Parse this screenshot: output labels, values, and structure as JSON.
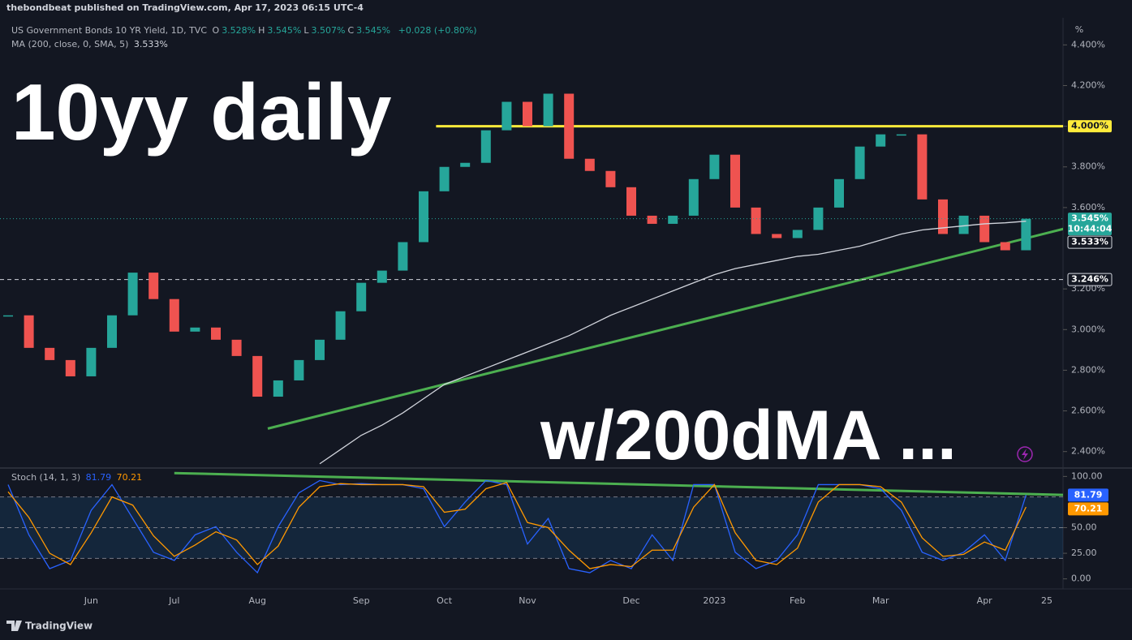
{
  "header": {
    "publisher": "thebondbeat published on TradingView.com, Apr 17, 2023 06:15 UTC-4",
    "footer": "TradingView"
  },
  "chart_data": [
    {
      "type": "candlestick",
      "axis_unit": "%",
      "ohlc": [
        {
          "key": "O",
          "value": "3.528%"
        },
        {
          "key": "H",
          "value": "3.545%"
        },
        {
          "key": "L",
          "value": "3.507%"
        },
        {
          "key": "C",
          "value": "3.545%"
        }
      ],
      "change": "+0.028 (+0.80%)",
      "annotations": [
        "10yy daily",
        "w/200dMA ..."
      ],
      "ylim": [
        2.323,
        4.533
      ],
      "yticks": [
        {
          "value": 2.4,
          "label": "2.400%"
        },
        {
          "value": 2.6,
          "label": "2.600%"
        },
        {
          "value": 2.8,
          "label": "2.800%"
        },
        {
          "value": 3.0,
          "label": "3.000%"
        },
        {
          "value": 3.2,
          "label": "3.200%"
        },
        {
          "value": 3.6,
          "label": "3.600%"
        },
        {
          "value": 3.8,
          "label": "3.800%"
        },
        {
          "value": 4.0,
          "label": "4.000%"
        },
        {
          "value": 4.2,
          "label": "4.200%"
        },
        {
          "value": 4.4,
          "label": "4.400%"
        }
      ],
      "series": [
        {
          "type": "candlestick",
          "name": "US Government Bonds 10 YR Yield, 1D, TVC",
          "up_color": "#26a69a",
          "down_color": "#ef5350",
          "values": [
            3.07,
            2.91,
            2.85,
            2.77,
            2.91,
            3.07,
            3.28,
            3.15,
            2.99,
            3.01,
            2.95,
            2.87,
            2.67,
            2.75,
            2.85,
            2.95,
            3.09,
            3.23,
            3.29,
            3.43,
            3.68,
            3.8,
            3.82,
            3.98,
            4.12,
            4.0,
            4.16,
            3.84,
            3.78,
            3.7,
            3.56,
            3.52,
            3.56,
            3.74,
            3.86,
            3.6,
            3.47,
            3.45,
            3.49,
            3.6,
            3.74,
            3.9,
            3.96,
            3.96,
            3.64,
            3.47,
            3.56,
            3.43,
            3.39,
            3.545,
            null
          ],
          "last_label": "3.545%",
          "countdown": "10:44:04"
        },
        {
          "type": "line",
          "name": "MA (200, close, 0, SMA, 5)",
          "color": "#d1d4dc",
          "values": [
            null,
            null,
            null,
            null,
            null,
            null,
            null,
            null,
            null,
            null,
            null,
            null,
            null,
            null,
            null,
            2.34,
            2.41,
            2.48,
            2.53,
            2.59,
            2.66,
            2.73,
            2.77,
            2.81,
            2.85,
            2.89,
            2.93,
            2.97,
            3.02,
            3.07,
            3.11,
            3.15,
            3.19,
            3.23,
            3.27,
            3.3,
            3.32,
            3.34,
            3.36,
            3.37,
            3.39,
            3.41,
            3.44,
            3.47,
            3.49,
            3.5,
            3.51,
            3.52,
            3.525,
            3.533,
            null
          ],
          "last_label": "3.533%"
        }
      ],
      "price_lines": [
        {
          "value": 3.246,
          "label": "3.246%"
        }
      ],
      "drawings": [
        {
          "color": "#ffeb3b",
          "x": [
            20.6,
            50.8
          ],
          "y": [
            4.0,
            4.0
          ],
          "label": "4.000%"
        },
        {
          "color": "#4caf50",
          "x": [
            12.5,
            50.8
          ],
          "y": [
            2.513,
            3.495
          ]
        }
      ]
    },
    {
      "type": "line",
      "legend": "Stoch (14, 1, 3)",
      "categories": [
        null,
        null,
        null,
        null,
        "Jun",
        null,
        null,
        null,
        "Jul",
        null,
        null,
        null,
        "Aug",
        null,
        null,
        null,
        null,
        "Sep",
        null,
        null,
        null,
        "Oct",
        null,
        null,
        null,
        "Nov",
        null,
        null,
        null,
        null,
        "Dec",
        null,
        null,
        null,
        "2023",
        null,
        null,
        null,
        "Feb",
        null,
        null,
        null,
        "Mar",
        null,
        null,
        null,
        null,
        "Apr",
        null,
        null,
        "25"
      ],
      "ylim": [
        -8.2,
        108.2
      ],
      "yticks": [
        {
          "value": 0,
          "label": "0.00"
        },
        {
          "value": 25,
          "label": "25.00"
        },
        {
          "value": 50,
          "label": "50.00"
        },
        {
          "value": 100,
          "label": "100.00"
        }
      ],
      "band": [
        20,
        80
      ],
      "guides": [
        20,
        50,
        80
      ],
      "series": [
        {
          "color": "#2962ff",
          "values": [
            92,
            43,
            10,
            18,
            67,
            92,
            59,
            26,
            18,
            43,
            51,
            26,
            6,
            51,
            84,
            96,
            92,
            93,
            92,
            92,
            88,
            51,
            75,
            96,
            92,
            34,
            59,
            10,
            6,
            18,
            10,
            43,
            18,
            92,
            92,
            26,
            10,
            18,
            43,
            92,
            92,
            92,
            88,
            67,
            26,
            18,
            26,
            43,
            18,
            81.79,
            null
          ]
        },
        {
          "color": "#ff9800",
          "values": [
            85,
            60,
            25,
            14,
            45,
            80,
            72,
            42,
            22,
            33,
            46,
            38,
            14,
            32,
            70,
            90,
            93,
            92,
            92,
            92,
            90,
            65,
            68,
            88,
            94,
            55,
            50,
            28,
            10,
            14,
            12,
            28,
            28,
            70,
            92,
            45,
            18,
            14,
            30,
            75,
            92,
            92,
            90,
            75,
            40,
            22,
            24,
            36,
            28,
            70.21,
            null
          ]
        }
      ],
      "drawings": [
        {
          "color": "#4caf50",
          "x": [
            8.0,
            50.8
          ],
          "y": [
            103.3,
            82.0
          ]
        }
      ]
    }
  ]
}
